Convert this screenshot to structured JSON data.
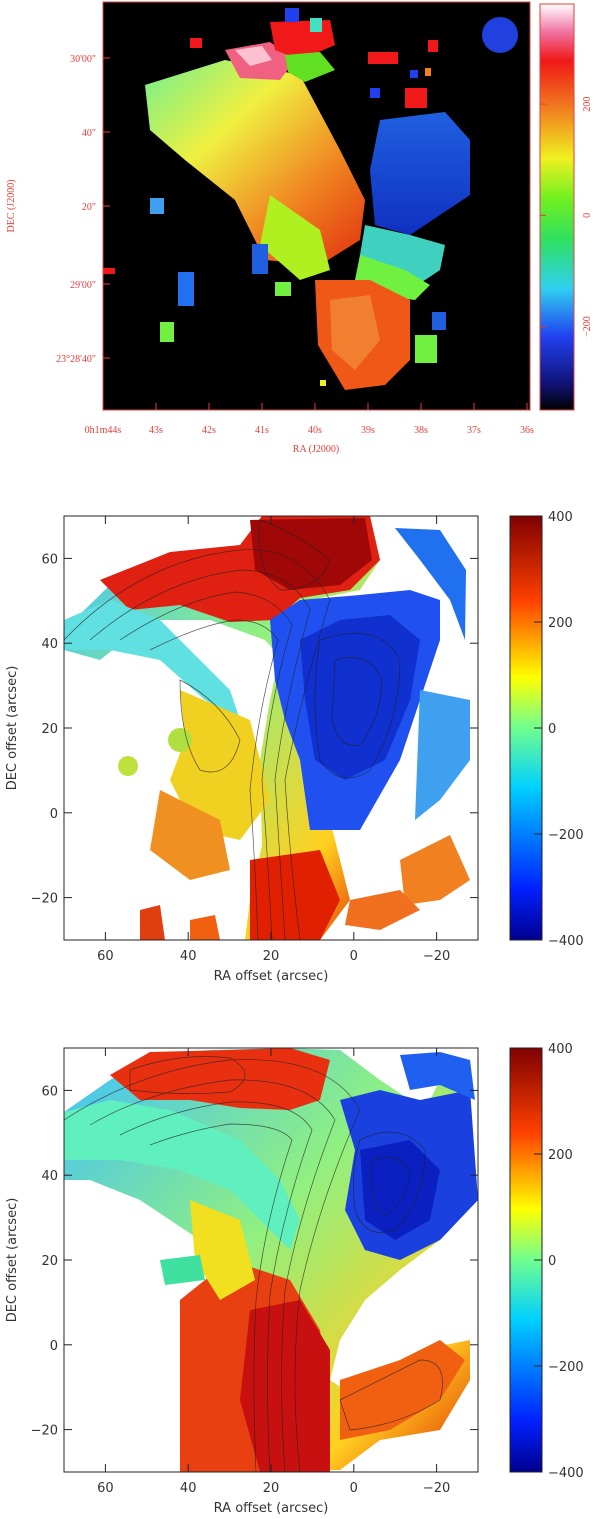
{
  "chart_data": [
    {
      "type": "heatmap",
      "xlabel": "RA (J2000)",
      "ylabel": "DEC (J2000)",
      "x_tick_labels": [
        "0h1m44s",
        "43s",
        "42s",
        "41s",
        "40s",
        "39s",
        "38s",
        "37s",
        "36s"
      ],
      "y_tick_labels": [
        "30'00\"",
        "40\"",
        "20\"",
        "29'00\"",
        "23°28'40\""
      ],
      "colorbar": {
        "ticks": [
          200,
          0,
          -200
        ],
        "range": [
          -350,
          380
        ]
      },
      "beam": {
        "shape": "circle",
        "location": "top-right",
        "color": "#2040e0"
      },
      "colors": {
        "axis_text": "#e0403a",
        "background": "#000000"
      }
    },
    {
      "type": "heatmap",
      "xlabel": "RA offset (arcsec)",
      "ylabel": "DEC offset (arcsec)",
      "xlim": [
        70,
        -30
      ],
      "ylim": [
        -30,
        70
      ],
      "x_ticks": [
        60,
        40,
        20,
        0,
        -20
      ],
      "y_ticks": [
        -20,
        0,
        20,
        40,
        60
      ],
      "colorbar": {
        "ticks": [
          400,
          200,
          0,
          -200,
          -400
        ],
        "range": [
          -400,
          400
        ]
      },
      "contours": true
    },
    {
      "type": "heatmap",
      "xlabel": "RA offset (arcsec)",
      "ylabel": "DEC offset (arcsec)",
      "xlim": [
        70,
        -30
      ],
      "ylim": [
        -30,
        70
      ],
      "x_ticks": [
        60,
        40,
        20,
        0,
        -20
      ],
      "y_ticks": [
        -20,
        0,
        20,
        40,
        60
      ],
      "colorbar": {
        "ticks": [
          400,
          200,
          0,
          -200,
          -400
        ],
        "range": [
          -400,
          400
        ]
      },
      "contours": true
    }
  ]
}
